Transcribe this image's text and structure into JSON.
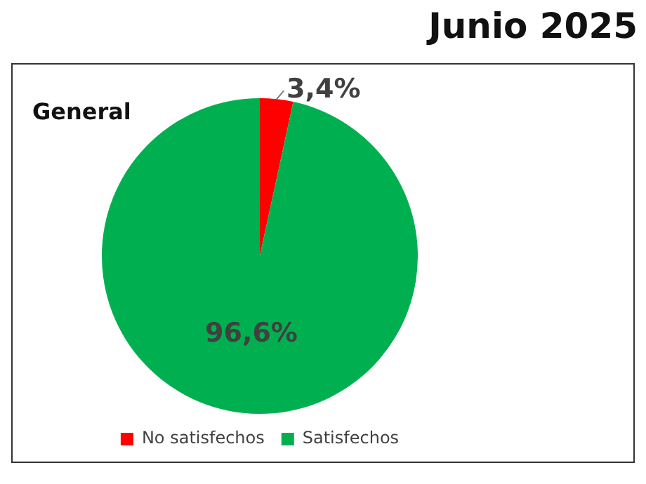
{
  "chart_data": {
    "type": "pie",
    "title": "Junio 2025",
    "subtitle": "General",
    "categories": [
      "No satisfechos",
      "Satisfechos"
    ],
    "values": [
      3.4,
      96.6
    ],
    "colors": [
      "#ff0000",
      "#00b050"
    ],
    "value_labels": [
      "3,4%",
      "96,6%"
    ],
    "legend": "bottom"
  }
}
